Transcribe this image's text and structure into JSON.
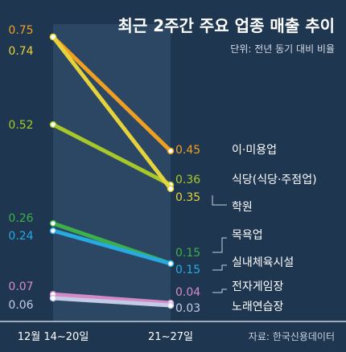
{
  "chart_data": {
    "type": "line",
    "title": "최근 2주간 주요 업종 매출 추이",
    "subtitle": "단위: 전년 동기 대비 비율",
    "source": "자료: 한국신용데이터",
    "x": [
      "12월 14~20일",
      "21~27일"
    ],
    "ylim": [
      0,
      0.8
    ],
    "grid": false,
    "series": [
      {
        "name": "이·미용업",
        "values": [
          0.75,
          0.45
        ],
        "value_labels": [
          "0.75",
          "0.45"
        ],
        "color": "#f0a020"
      },
      {
        "name": "식당(식당·주점업)",
        "values": [
          0.52,
          0.36
        ],
        "value_labels": [
          "0.52",
          "0.36"
        ],
        "color": "#a8c828"
      },
      {
        "name": "학원",
        "values": [
          0.74,
          0.35
        ],
        "value_labels": [
          "0.74",
          "0.35"
        ],
        "color": "#e6d23a"
      },
      {
        "name": "목욕업",
        "values": [
          0.26,
          0.15
        ],
        "value_labels": [
          "0.26",
          "0.15"
        ],
        "color": "#3cb04a"
      },
      {
        "name": "실내체육시설",
        "values": [
          0.24,
          0.15
        ],
        "value_labels": [
          "0.24",
          "0.15"
        ],
        "color": "#27a9e1"
      },
      {
        "name": "전자게임장",
        "values": [
          0.07,
          0.04
        ],
        "value_labels": [
          "0.07",
          "0.04"
        ],
        "color": "#d58ac8"
      },
      {
        "name": "노래연습장",
        "values": [
          0.06,
          0.03
        ],
        "value_labels": [
          "0.06",
          "0.03"
        ],
        "color": "#c3cbe6"
      }
    ]
  }
}
